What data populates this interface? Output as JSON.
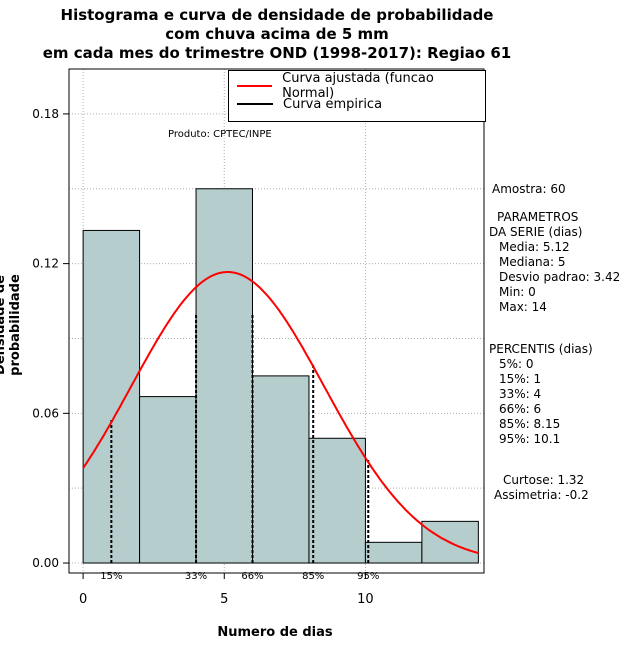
{
  "title_lines": [
    "Histograma e curva de densidade de probabilidade",
    "com chuva acima de 5 mm",
    "em cada mes do trimestre OND (1998-2017): Regiao 61"
  ],
  "product_note": "Produto: CPTEC/INPE",
  "legend": {
    "fitted_label": "Curva ajustada (funcao Normal)",
    "empirical_label": "Curva empirica"
  },
  "side_panel": {
    "sample": "Amostra: 60",
    "params_header_1": "PARAMETROS",
    "params_header_2": "DA SERIE (dias)",
    "mean": "Media: 5.12",
    "median": "Mediana: 5",
    "sd": "Desvio padrao: 3.42",
    "min": "Min: 0",
    "max": "Max: 14",
    "pct_header": "PERCENTIS (dias)",
    "p5": "5%: 0",
    "p15": "15%: 1",
    "p33": "33%: 4",
    "p66": "66%: 6",
    "p85": "85%: 8.15",
    "p95": "95%: 10.1",
    "kurtosis": "Curtose: 1.32",
    "skewness": "Assimetria: -0.2"
  },
  "colors": {
    "bar_fill": "#b5cdcd",
    "curve": "#ff0000",
    "grid": "#b0b0b0"
  },
  "chart_data": {
    "type": "bar",
    "title": "Histograma e curva de densidade de probabilidade com chuva acima de 5 mm em cada mes do trimestre OND (1998-2017): Regiao 61",
    "xlabel": "Numero de dias",
    "ylabel": "Densidade de probabilidade",
    "xlim": [
      -0.5,
      14.2
    ],
    "ylim": [
      -0.004,
      0.198
    ],
    "xticks": [
      0,
      5,
      10
    ],
    "yticks": [
      0.0,
      0.06,
      0.12,
      0.18
    ],
    "ytick_labels": [
      "0.00",
      "0.06",
      "0.12",
      "0.18"
    ],
    "grid_y": [
      0.03,
      0.09,
      0.15
    ],
    "grid_x": [
      0,
      5,
      10
    ],
    "bins": [
      {
        "x0": 0,
        "x1": 2,
        "density": 0.1333
      },
      {
        "x0": 2,
        "x1": 4,
        "density": 0.0667
      },
      {
        "x0": 4,
        "x1": 6,
        "density": 0.15
      },
      {
        "x0": 6,
        "x1": 8,
        "density": 0.075
      },
      {
        "x0": 8,
        "x1": 10,
        "density": 0.05
      },
      {
        "x0": 10,
        "x1": 12,
        "density": 0.0083
      },
      {
        "x0": 12,
        "x1": 14,
        "density": 0.0167
      }
    ],
    "normal_fit": {
      "mean": 5.12,
      "sd": 3.42,
      "x_from": 0,
      "x_to": 14
    },
    "percentile_marks": [
      {
        "label": "15%",
        "x": 1,
        "density": 0.058
      },
      {
        "label": "33%",
        "x": 4,
        "density": 0.1
      },
      {
        "label": "66%",
        "x": 6,
        "density": 0.1
      },
      {
        "label": "85%",
        "x": 8.15,
        "density": 0.08
      },
      {
        "label": "95%",
        "x": 10.1,
        "density": 0.042
      }
    ]
  }
}
